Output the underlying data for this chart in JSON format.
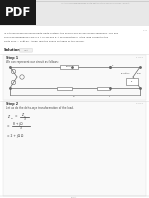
{
  "bg_color": "#f0f0f0",
  "page_bg": "#e8e8e8",
  "card_bg": "#ffffff",
  "card_border": "#cccccc",
  "pdf_bg": "#1a1a1a",
  "pdf_fg": "#ffffff",
  "pdf_label": "PDF",
  "title_text": "In A Three Phase Balanced Delta-delta System The Source Has - Quizlet",
  "title_color": "#999999",
  "body_lines": [
    "In a three-phase balanced delta-delta system, the source has an abc-phase sequence. The line",
    "and load impedances are 0.3 + j0.2Ω and 8 + jΩ respectively. If the load current in the",
    "delta is Iₐᴇ = 11∠-30° Amps, find the phase voltages of the source."
  ],
  "text_color": "#444444",
  "solution_color": "#222222",
  "step_color": "#333333",
  "sub_color": "#aaaaaa",
  "formula_color": "#333333",
  "circuit_color": "#666666",
  "divider_color": "#dddddd",
  "step_bg": "#f9f9f9",
  "step_border": "#e0e0e0"
}
